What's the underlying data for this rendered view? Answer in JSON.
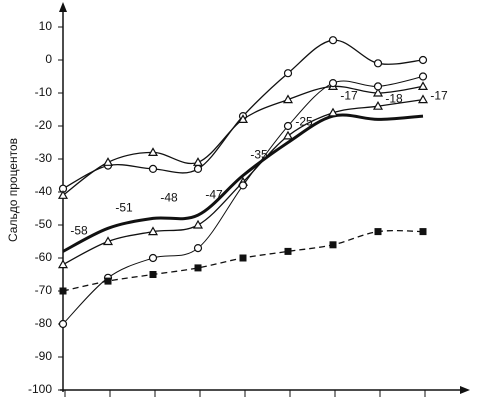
{
  "chart_data": {
    "type": "line",
    "y_label": "Сальдо процентов",
    "categories": [
      null,
      null,
      null,
      null,
      null,
      null,
      null,
      null,
      null
    ],
    "ylim": [
      -100,
      10
    ],
    "yticks": [
      -100,
      -90,
      -80,
      -70,
      -60,
      -50,
      -40,
      -30,
      -20,
      -10,
      0,
      10
    ],
    "series": [
      {
        "color": "#111111",
        "marker": "circle",
        "line_width": 1.3,
        "dashed": false,
        "values": [
          -39,
          -32,
          -33,
          -33,
          -17,
          -4,
          6,
          -1,
          0
        ]
      },
      {
        "color": "#111111",
        "marker": "triangle",
        "line_width": 1.3,
        "dashed": false,
        "values": [
          -41,
          -31,
          -28,
          -31,
          -18,
          -12,
          -8,
          -10,
          -8
        ]
      },
      {
        "color": "#111111",
        "marker": "none",
        "line_width": 3,
        "dashed": false,
        "show_values": true,
        "values": [
          -58,
          -51,
          -48,
          -47,
          -35,
          -25,
          -17,
          -18,
          -17
        ]
      },
      {
        "color": "#111111",
        "marker": "triangle",
        "line_width": 1.3,
        "dashed": false,
        "values": [
          -62,
          -55,
          -52,
          -50,
          -37,
          -23,
          -16,
          -14,
          -12
        ]
      },
      {
        "color": "#111111",
        "marker": "circle",
        "line_width": 1,
        "dashed": false,
        "values": [
          -80,
          -66,
          -60,
          -57,
          -38,
          -20,
          -7,
          -8,
          -5
        ]
      },
      {
        "color": "#111111",
        "marker": "square",
        "line_width": 1.3,
        "dashed": true,
        "values": [
          -70,
          -67,
          -65,
          -63,
          -60,
          -58,
          -56,
          -52,
          -52
        ]
      }
    ]
  }
}
